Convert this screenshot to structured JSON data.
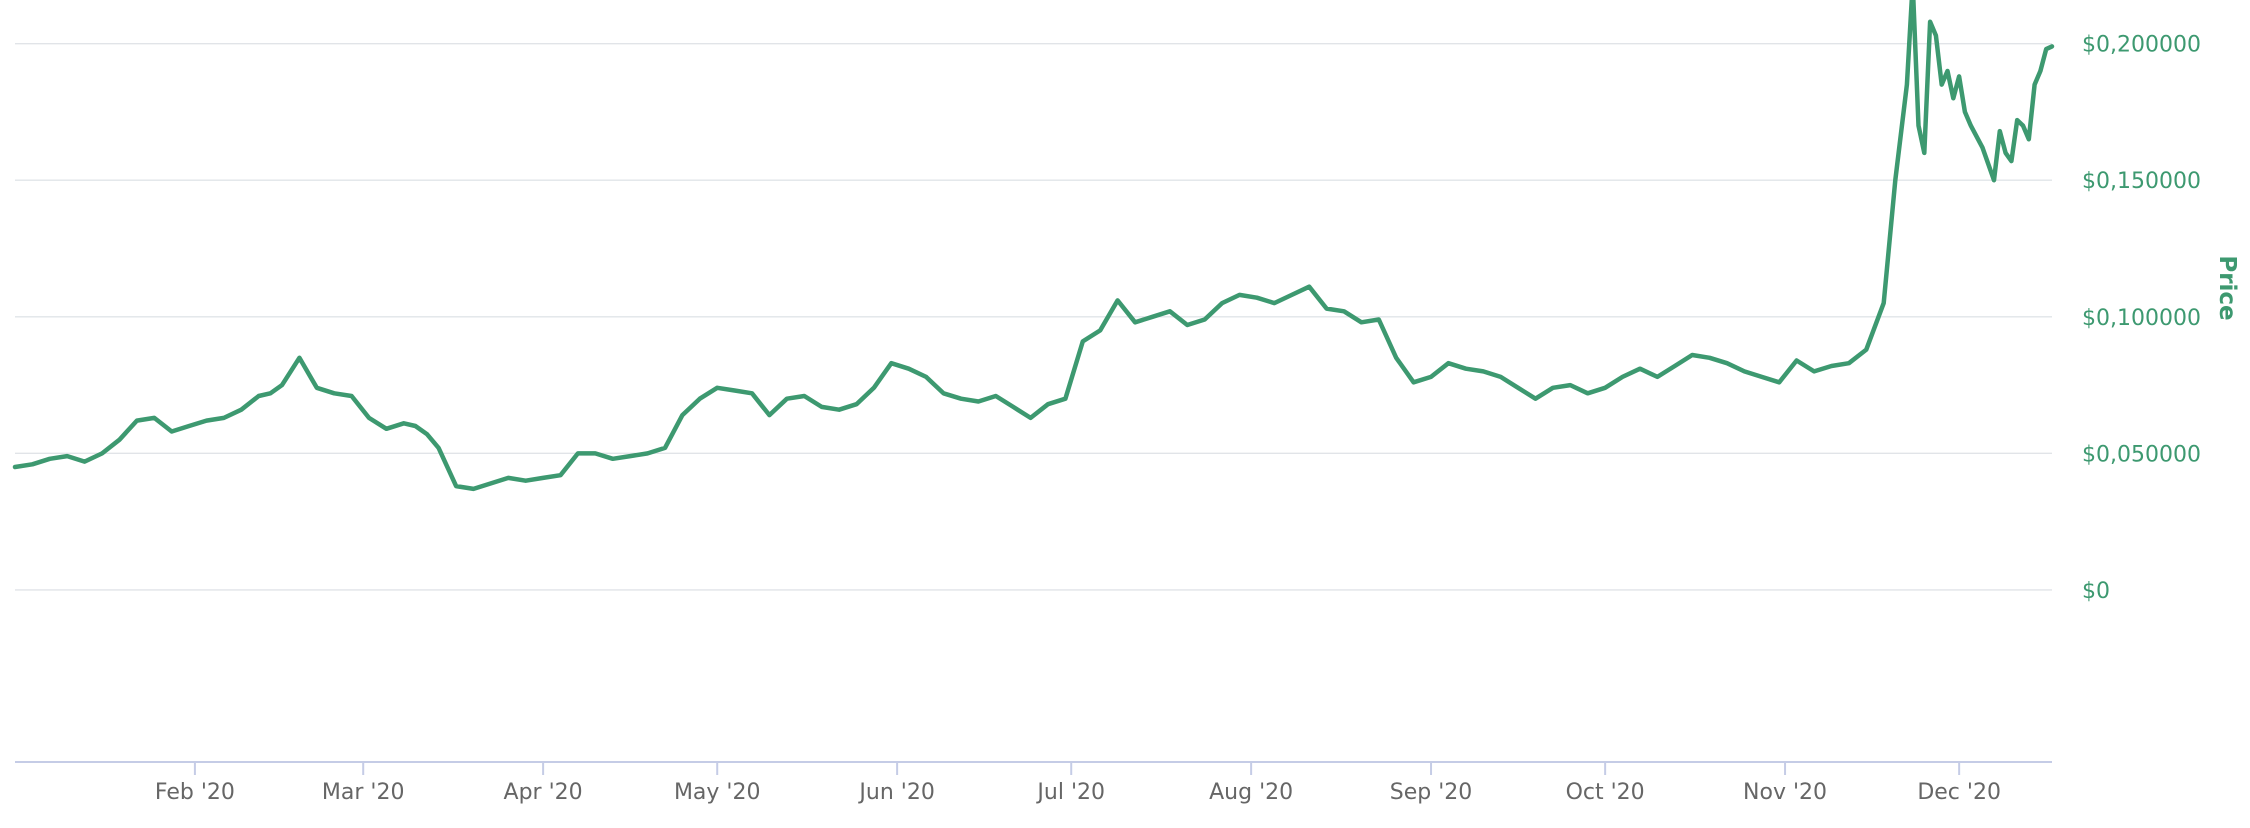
{
  "chart_data": {
    "type": "line",
    "title": "",
    "xlabel": "",
    "ylabel": "Price",
    "ylim": [
      -0.063,
      0.205
    ],
    "y_ticks": [
      0,
      0.05,
      0.1,
      0.15,
      0.2
    ],
    "y_tick_labels": [
      "$0",
      "$0,050000",
      "$0,100000",
      "$0,150000",
      "$0,200000"
    ],
    "x_ticks": [
      "2020-02-01",
      "2020-03-01",
      "2020-04-01",
      "2020-05-01",
      "2020-06-01",
      "2020-07-01",
      "2020-08-01",
      "2020-09-01",
      "2020-10-01",
      "2020-11-01",
      "2020-12-01"
    ],
    "x_tick_labels": [
      "Feb '20",
      "Mar '20",
      "Apr '20",
      "May '20",
      "Jun '20",
      "Jul '20",
      "Aug '20",
      "Sep '20",
      "Oct '20",
      "Nov '20",
      "Dec '20"
    ],
    "xlim": [
      "2020-01-01",
      "2020-12-17"
    ],
    "grid": true,
    "legend": "none",
    "colors": {
      "series": "#3d9970",
      "grid": "#e1e4e8",
      "axis": "#c5cce6",
      "x_labels": "#666666"
    },
    "series": [
      {
        "name": "",
        "x": [
          "2020-01-01",
          "2020-01-04",
          "2020-01-07",
          "2020-01-10",
          "2020-01-13",
          "2020-01-16",
          "2020-01-19",
          "2020-01-22",
          "2020-01-25",
          "2020-01-28",
          "2020-01-31",
          "2020-02-03",
          "2020-02-06",
          "2020-02-09",
          "2020-02-12",
          "2020-02-14",
          "2020-02-16",
          "2020-02-19",
          "2020-02-22",
          "2020-02-25",
          "2020-02-28",
          "2020-03-02",
          "2020-03-05",
          "2020-03-08",
          "2020-03-10",
          "2020-03-12",
          "2020-03-14",
          "2020-03-17",
          "2020-03-20",
          "2020-03-23",
          "2020-03-26",
          "2020-03-29",
          "2020-04-01",
          "2020-04-04",
          "2020-04-07",
          "2020-04-10",
          "2020-04-13",
          "2020-04-16",
          "2020-04-19",
          "2020-04-22",
          "2020-04-25",
          "2020-04-28",
          "2020-05-01",
          "2020-05-04",
          "2020-05-07",
          "2020-05-10",
          "2020-05-13",
          "2020-05-16",
          "2020-05-19",
          "2020-05-22",
          "2020-05-25",
          "2020-05-28",
          "2020-05-31",
          "2020-06-03",
          "2020-06-06",
          "2020-06-09",
          "2020-06-12",
          "2020-06-15",
          "2020-06-18",
          "2020-06-21",
          "2020-06-24",
          "2020-06-27",
          "2020-06-30",
          "2020-07-03",
          "2020-07-06",
          "2020-07-09",
          "2020-07-12",
          "2020-07-15",
          "2020-07-18",
          "2020-07-21",
          "2020-07-24",
          "2020-07-27",
          "2020-07-30",
          "2020-08-02",
          "2020-08-05",
          "2020-08-08",
          "2020-08-11",
          "2020-08-14",
          "2020-08-17",
          "2020-08-20",
          "2020-08-23",
          "2020-08-26",
          "2020-08-29",
          "2020-09-01",
          "2020-09-04",
          "2020-09-07",
          "2020-09-10",
          "2020-09-13",
          "2020-09-16",
          "2020-09-19",
          "2020-09-22",
          "2020-09-25",
          "2020-09-28",
          "2020-10-01",
          "2020-10-04",
          "2020-10-07",
          "2020-10-10",
          "2020-10-13",
          "2020-10-16",
          "2020-10-19",
          "2020-10-22",
          "2020-10-25",
          "2020-10-28",
          "2020-10-31",
          "2020-11-03",
          "2020-11-06",
          "2020-11-09",
          "2020-11-12",
          "2020-11-15",
          "2020-11-18",
          "2020-11-20",
          "2020-11-22",
          "2020-11-23",
          "2020-11-24",
          "2020-11-25",
          "2020-11-26",
          "2020-11-27",
          "2020-11-28",
          "2020-11-29",
          "2020-11-30",
          "2020-12-01",
          "2020-12-02",
          "2020-12-03",
          "2020-12-05",
          "2020-12-07",
          "2020-12-08",
          "2020-12-09",
          "2020-12-10",
          "2020-12-11",
          "2020-12-12",
          "2020-12-13",
          "2020-12-14",
          "2020-12-15",
          "2020-12-16",
          "2020-12-17"
        ],
        "y": [
          0.045,
          0.046,
          0.048,
          0.049,
          0.047,
          0.05,
          0.055,
          0.062,
          0.063,
          0.058,
          0.06,
          0.062,
          0.063,
          0.066,
          0.071,
          0.072,
          0.075,
          0.085,
          0.074,
          0.072,
          0.071,
          0.063,
          0.059,
          0.061,
          0.06,
          0.057,
          0.052,
          0.038,
          0.037,
          0.039,
          0.041,
          0.04,
          0.041,
          0.042,
          0.05,
          0.05,
          0.048,
          0.049,
          0.05,
          0.052,
          0.064,
          0.07,
          0.074,
          0.073,
          0.072,
          0.064,
          0.07,
          0.071,
          0.067,
          0.066,
          0.068,
          0.074,
          0.083,
          0.081,
          0.078,
          0.072,
          0.07,
          0.069,
          0.071,
          0.067,
          0.063,
          0.068,
          0.07,
          0.091,
          0.095,
          0.106,
          0.098,
          0.1,
          0.102,
          0.097,
          0.099,
          0.105,
          0.108,
          0.107,
          0.105,
          0.108,
          0.111,
          0.103,
          0.102,
          0.098,
          0.099,
          0.085,
          0.076,
          0.078,
          0.083,
          0.081,
          0.08,
          0.078,
          0.074,
          0.07,
          0.074,
          0.075,
          0.072,
          0.074,
          0.078,
          0.081,
          0.078,
          0.082,
          0.086,
          0.085,
          0.083,
          0.08,
          0.078,
          0.076,
          0.084,
          0.08,
          0.082,
          0.083,
          0.088,
          0.105,
          0.15,
          0.185,
          0.222,
          0.17,
          0.16,
          0.208,
          0.203,
          0.185,
          0.19,
          0.18,
          0.188,
          0.175,
          0.17,
          0.162,
          0.15,
          0.168,
          0.16,
          0.157,
          0.172,
          0.17,
          0.165,
          0.185,
          0.19,
          0.198,
          0.199
        ]
      }
    ]
  }
}
